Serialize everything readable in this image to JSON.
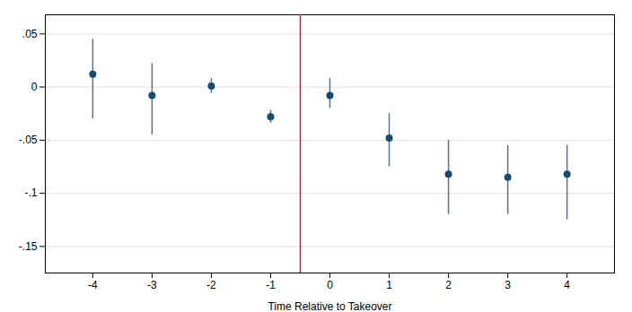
{
  "chart_data": {
    "type": "scatter",
    "xlabel": "Time Relative to Takeover",
    "x": [
      -4,
      -3,
      -2,
      -1,
      0,
      1,
      2,
      3,
      4
    ],
    "values": [
      0.012,
      -0.008,
      0.001,
      -0.028,
      -0.008,
      -0.048,
      -0.082,
      -0.085,
      -0.082
    ],
    "ci_lower": [
      -0.03,
      -0.045,
      -0.006,
      -0.034,
      -0.02,
      -0.075,
      -0.12,
      -0.12,
      -0.125
    ],
    "ci_upper": [
      0.045,
      0.022,
      0.008,
      -0.022,
      0.008,
      -0.025,
      -0.05,
      -0.055,
      -0.055
    ],
    "color": "#1a4a6b",
    "vline": {
      "value": -0.5,
      "color": "#b03050"
    },
    "xlim": [
      -4.8,
      4.8
    ],
    "xticks": [
      -4,
      -3,
      -2,
      -1,
      0,
      1,
      2,
      3,
      4
    ],
    "ylim": [
      -0.175,
      0.068
    ],
    "yticks": [
      {
        "value": 0.05,
        "label": ".05"
      },
      0,
      {
        "value": -0.05,
        "label": "-.05"
      },
      {
        "value": -0.1,
        "label": "-.1"
      },
      {
        "value": -0.15,
        "label": "-.15"
      }
    ],
    "grid": true
  }
}
